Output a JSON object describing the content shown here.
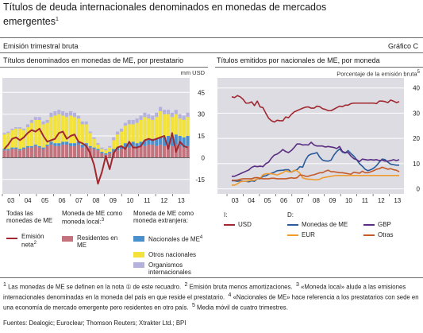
{
  "header": {
    "title": "Títulos de deuda internacionales denominados en monedas de mercados emergentes",
    "title_footnote": "1",
    "subtitle": "Emisión trimestral bruta",
    "chart_label": "Gráfico C"
  },
  "colors": {
    "maroon": "#a12830",
    "rose": "#c4727b",
    "blue": "#4a90cc",
    "yellow": "#f2e23a",
    "lavender": "#b4b1dc",
    "navy": "#2a5a9a",
    "orange": "#ef9b2f",
    "purple": "#5a2d82",
    "panel_bg": "#dcdce2"
  },
  "chart_data": [
    {
      "type": "bar",
      "title": "Títulos denominados en monedas de ME, por prestatario",
      "unit": "mm USD",
      "x_ticks": [
        "03",
        "04",
        "05",
        "06",
        "07",
        "08",
        "09",
        "10",
        "11",
        "12",
        "13"
      ],
      "ylim": [
        -25,
        55
      ],
      "y_ticks": [
        45,
        30,
        15,
        0,
        -15
      ],
      "stacked_series": [
        {
          "key": "res",
          "color": "#c4727b",
          "values": [
            5,
            5,
            6,
            6,
            5,
            6,
            7,
            7,
            8,
            7,
            6,
            8,
            9,
            8,
            8,
            9,
            9,
            8,
            8,
            9,
            7,
            8,
            7,
            6,
            5,
            3,
            2,
            3,
            4,
            5,
            6,
            7,
            7,
            8,
            7,
            8,
            8,
            9,
            9,
            8,
            9,
            8,
            9,
            8,
            9,
            8,
            7,
            8
          ]
        },
        {
          "key": "nac",
          "color": "#4a90cc",
          "values": [
            1,
            1,
            1,
            1,
            1,
            1,
            1,
            1,
            1,
            1,
            1,
            1,
            2,
            2,
            2,
            2,
            2,
            2,
            2,
            2,
            2,
            2,
            1,
            1,
            1,
            1,
            1,
            1,
            2,
            2,
            2,
            3,
            3,
            3,
            3,
            3,
            4,
            4,
            4,
            5,
            5,
            6,
            6,
            6,
            7,
            7,
            7,
            7
          ]
        },
        {
          "key": "otr",
          "color": "#f2e23a",
          "values": [
            10,
            11,
            12,
            13,
            14,
            12,
            13,
            16,
            17,
            18,
            16,
            15,
            17,
            19,
            20,
            18,
            17,
            19,
            18,
            16,
            14,
            13,
            9,
            6,
            3,
            2,
            2,
            3,
            6,
            9,
            10,
            12,
            13,
            12,
            14,
            15,
            16,
            14,
            13,
            15,
            18,
            16,
            15,
            14,
            14,
            12,
            12,
            13
          ]
        },
        {
          "key": "org",
          "color": "#b4b1dc",
          "values": [
            1,
            1,
            1,
            1,
            1,
            1,
            2,
            2,
            2,
            2,
            2,
            2,
            3,
            3,
            3,
            3,
            3,
            3,
            3,
            2,
            2,
            2,
            1,
            1,
            1,
            1,
            1,
            1,
            2,
            2,
            2,
            2,
            3,
            3,
            3,
            3,
            3,
            3,
            3,
            3,
            3,
            3,
            3,
            3,
            3,
            3,
            3,
            3
          ]
        }
      ],
      "line_series": {
        "key": "neta",
        "color": "#a12830",
        "values": [
          6,
          9,
          13,
          14,
          12,
          14,
          17,
          19,
          18,
          20,
          15,
          11,
          12,
          13,
          17,
          18,
          13,
          15,
          16,
          11,
          10,
          8,
          3,
          -5,
          -18,
          -10,
          1,
          -8,
          3,
          7,
          8,
          6,
          11,
          7,
          7,
          8,
          12,
          13,
          12,
          13,
          14,
          15,
          6,
          17,
          4,
          11,
          8,
          7
        ]
      },
      "legend": {
        "col1_title": "Todas las monedas de ME",
        "col2_title": "Moneda de ME como moneda local:",
        "col2_title_sup": "3",
        "col3_title": "Moneda de ME como moneda extranjera:",
        "items": {
          "neta": "Emisión neta",
          "neta_sup": "2",
          "res": "Residentes en ME",
          "nac": "Nacionales de ME",
          "nac_sup": "4",
          "otr": "Otros nacionales",
          "org": "Organismos internacionales"
        }
      }
    },
    {
      "type": "line",
      "title": "Títulos emitidos por nacionales de ME, por moneda",
      "unit": "Porcentaje de la emisión bruta",
      "unit_sup": "5",
      "x_ticks": [
        "03",
        "04",
        "05",
        "06",
        "07",
        "08",
        "09",
        "10",
        "11",
        "12",
        "13"
      ],
      "ylim": [
        -2,
        44
      ],
      "y_ticks": [
        40,
        30,
        20,
        10,
        0
      ],
      "series": [
        {
          "key": "usd",
          "color": "#a12830",
          "values": [
            36.5,
            36.2,
            37,
            36.5,
            35.5,
            34,
            34,
            34.5,
            33,
            34.8,
            32.5,
            32.2,
            30,
            28,
            27,
            26.5,
            27.2,
            27,
            27,
            28.5,
            28.2,
            29.5,
            30.5,
            31,
            31.5,
            32,
            32.4,
            32.5,
            32,
            32,
            32.8,
            32.6,
            31.8,
            31.5,
            31,
            31,
            31.6,
            32.2,
            32.8,
            32.6,
            33.2,
            33.2,
            33.8,
            34,
            34,
            34,
            34,
            34,
            34,
            34,
            34,
            33.8,
            34.8,
            34.8,
            34.6,
            34.2,
            35.2,
            34.8,
            34.2,
            34.6
          ]
        },
        {
          "key": "mon",
          "color": "#2a5a9a",
          "values": [
            3.2,
            3.2,
            3,
            3.2,
            3,
            3,
            2.8,
            3.2,
            3,
            4,
            4,
            5,
            5.2,
            5.8,
            6.2,
            6.6,
            7.2,
            7.3,
            7.4,
            7.6,
            7.6,
            6.6,
            7.2,
            7.6,
            8.8,
            8.6,
            11.4,
            13.2,
            13.8,
            14,
            14.4,
            12.6,
            11.4,
            11.1,
            11,
            11.4,
            13.4,
            14.8,
            15.8,
            14.6,
            14.2,
            15.2,
            14,
            13,
            11.6,
            10,
            9,
            7.8,
            7.2,
            7.6,
            8.2,
            9.2,
            10.6,
            11.8,
            11.6,
            10.6,
            9.8,
            9.6,
            9.4,
            9.4
          ]
        },
        {
          "key": "eur",
          "color": "#ef9b2f",
          "values": [
            1.5,
            1.5,
            2,
            2.8,
            3,
            3,
            3.2,
            3.4,
            3.4,
            4,
            4.2,
            5.6,
            6,
            6,
            6,
            5.8,
            5.5,
            6,
            6.4,
            7.2,
            6.8,
            6.6,
            7.4,
            7.2,
            6.2,
            4.4,
            4,
            3.8,
            3.8,
            3.6,
            3.6,
            3.8,
            4.4,
            4.6,
            4.8,
            5,
            5.2,
            5.3,
            5.3,
            5.3,
            5.3,
            5.3,
            5.3,
            5.3,
            5.3,
            5.3,
            5.3,
            5.3,
            5.3,
            5.3,
            5.3,
            5.3,
            5.3,
            5.3,
            5.3,
            5.3,
            5.3,
            5.3,
            5.3,
            5.3
          ]
        },
        {
          "key": "gbp",
          "color": "#5a2d82",
          "values": [
            5,
            5,
            5.5,
            6,
            6.5,
            7,
            7.5,
            8.5,
            9,
            8.8,
            9,
            8.8,
            10,
            10.6,
            12.2,
            13.4,
            13.8,
            14.6,
            15.6,
            14.8,
            14.4,
            15.2,
            16.4,
            17.8,
            17.8,
            17.4,
            17.5,
            17.4,
            18.5,
            17.4,
            17,
            17,
            17,
            16.6,
            16.8,
            16.6,
            16.4,
            16,
            16.8,
            14.8,
            14.4,
            14.4,
            13,
            12,
            11.6,
            10.8,
            11.8,
            11.6,
            11.4,
            11.6,
            11.4,
            11.6,
            11.2,
            11.4,
            11,
            11,
            11.2,
            11.6,
            11.2,
            11.6
          ]
        },
        {
          "key": "otr",
          "color": "#c45a2a",
          "values": [
            3.4,
            3.4,
            3.5,
            3.8,
            4,
            4,
            4,
            4,
            4.4,
            4.5,
            4.2,
            4,
            4,
            4,
            4.2,
            4.2,
            4,
            4,
            4,
            4,
            4.2,
            4.4,
            4.2,
            4.4,
            5.5,
            5.4,
            5,
            5,
            5.4,
            5.6,
            6,
            6.4,
            6.4,
            7,
            7.4,
            6.8,
            6.8,
            6.6,
            6.4,
            6.4,
            6.2,
            6,
            5.8,
            6.6,
            6.4,
            6.2,
            7,
            6.4,
            6.4,
            6.8,
            7.2,
            7.8,
            8,
            8.6,
            8.2,
            7.8,
            8,
            7.6,
            7.4,
            6.8
          ]
        }
      ],
      "legend": {
        "group1_title": "I:",
        "group2_title": "D:",
        "items": {
          "usd": "USD",
          "mon": "Monedas de ME",
          "gbp": "GBP",
          "eur": "EUR",
          "otr": "Otras"
        }
      }
    }
  ],
  "footnotes": {
    "text1": "Las monedas de ME se definen en la nota ① de este recuadro.",
    "text2": "Emisión bruta menos amortizaciones.",
    "text3": "«Moneda local» alude a las emisiones internacionales denominadas en la moneda del país en que reside el prestatario.",
    "text4": "«Nacionales de ME» hace referencia a los prestatarios con sede en una economía de mercado emergente pero residentes en otro país.",
    "text5": "Media móvil de cuatro trimestres.",
    "sources": "Fuentes: Dealogic; Euroclear; Thomson Reuters; Xtrakter Ltd.; BPI"
  }
}
